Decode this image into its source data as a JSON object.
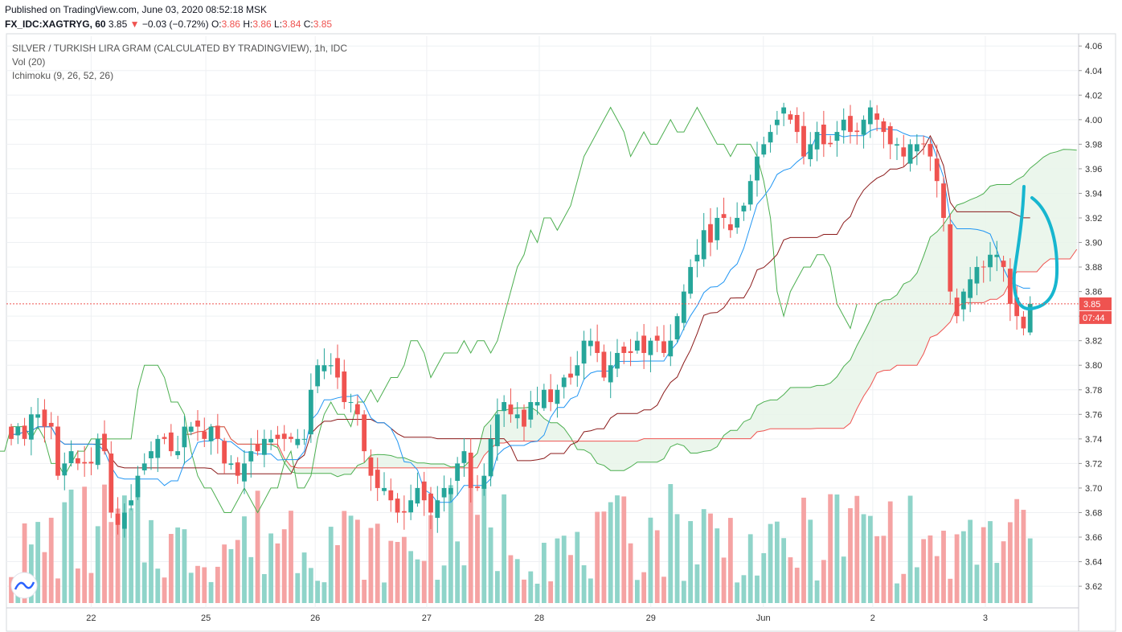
{
  "header": {
    "published": "Published on TradingView.com, June 03, 2020 08:52:18 MSK",
    "symbol": "FX_IDC:XAGTRYG, 60",
    "last": "3.85",
    "change": "−0.03 (−0.72%)",
    "o_label": "O:",
    "o": "3.86",
    "h_label": "H:",
    "h": "3.86",
    "l_label": "L:",
    "l": "3.84",
    "c_label": "C:",
    "c": "3.85"
  },
  "legend": {
    "title": "SILVER / TURKISH LIRA GRAM (CALCULATED BY TRADINGVIEW), 1h, IDC",
    "vol": "Vol (20)",
    "ichimoku": "Ichimoku (9, 26, 52, 26)"
  },
  "price_tag": {
    "value": "3.85",
    "countdown": "07:44"
  },
  "colors": {
    "up": "#26a69a",
    "down": "#ef5350",
    "up_vol": "#8fd4c9",
    "down_vol": "#f5a3a3",
    "tenkan": "#2196f3",
    "kijun": "#8b1a1a",
    "chikou": "#4caf50",
    "span_a": "#4caf50",
    "span_b": "#ef5350",
    "cloud_up": "#e8f5e9",
    "cloud_down": "#fdecec",
    "annotation": "#17b6cf"
  },
  "chart_data": {
    "type": "candlestick",
    "ylim": [
      3.605,
      4.068
    ],
    "y_ticks": [
      "4.06",
      "4.04",
      "4.02",
      "4.00",
      "3.98",
      "3.96",
      "3.94",
      "3.92",
      "3.90",
      "3.88",
      "3.86",
      "3.84",
      "3.82",
      "3.80",
      "3.78",
      "3.76",
      "3.74",
      "3.72",
      "3.70",
      "3.68",
      "3.66",
      "3.64",
      "3.62"
    ],
    "x_ticks": [
      "22",
      "25",
      "26",
      "27",
      "28",
      "29",
      "Jun",
      "2",
      "3"
    ],
    "last_price": 3.85,
    "closes": [
      3.74,
      3.75,
      3.74,
      3.76,
      3.76,
      3.75,
      3.75,
      3.71,
      3.72,
      3.73,
      3.72,
      3.72,
      3.72,
      3.74,
      3.73,
      3.68,
      3.67,
      3.68,
      3.69,
      3.71,
      3.72,
      3.73,
      3.74,
      3.74,
      3.73,
      3.73,
      3.75,
      3.75,
      3.75,
      3.74,
      3.75,
      3.74,
      3.72,
      3.72,
      3.71,
      3.72,
      3.73,
      3.73,
      3.74,
      3.74,
      3.74,
      3.74,
      3.74,
      3.74,
      3.74,
      3.78,
      3.8,
      3.8,
      3.8,
      3.79,
      3.77,
      3.77,
      3.76,
      3.73,
      3.71,
      3.7,
      3.7,
      3.69,
      3.68,
      3.68,
      3.69,
      3.7,
      3.69,
      3.68,
      3.69,
      3.7,
      3.7,
      3.72,
      3.73,
      3.7,
      3.7,
      3.71,
      3.74,
      3.76,
      3.77,
      3.76,
      3.76,
      3.75,
      3.77,
      3.77,
      3.78,
      3.77,
      3.78,
      3.79,
      3.79,
      3.8,
      3.82,
      3.82,
      3.81,
      3.79,
      3.8,
      3.81,
      3.81,
      3.81,
      3.82,
      3.81,
      3.82,
      3.82,
      3.81,
      3.82,
      3.84,
      3.86,
      3.88,
      3.89,
      3.91,
      3.9,
      3.92,
      3.92,
      3.91,
      3.92,
      3.93,
      3.95,
      3.97,
      3.98,
      3.99,
      4.0,
      4.01,
      4.0,
      3.99,
      3.97,
      3.98,
      3.99,
      3.98,
      3.98,
      3.99,
      4.0,
      3.99,
      3.99,
      4.0,
      4.01,
      4.0,
      3.99,
      3.98,
      3.98,
      3.97,
      3.98,
      3.98,
      3.98,
      3.97,
      3.95,
      3.92,
      3.86,
      3.84,
      3.86,
      3.87,
      3.88,
      3.88,
      3.89,
      3.89,
      3.88,
      3.85,
      3.84,
      3.83,
      3.85
    ]
  },
  "annotation": {
    "type": "freehand-check"
  }
}
